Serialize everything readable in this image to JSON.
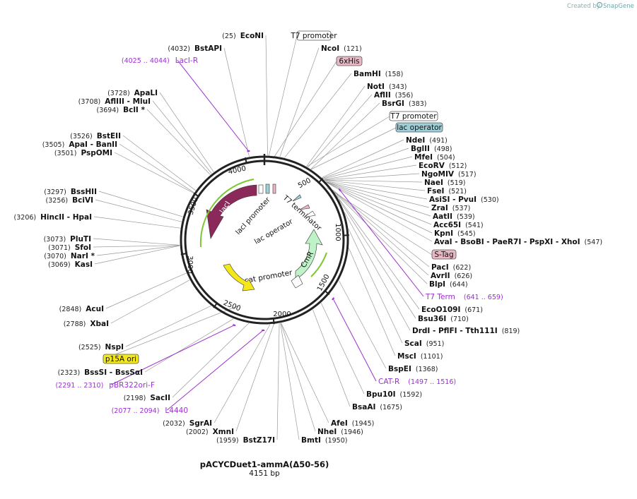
{
  "credit": "Created by",
  "brand": "SnapGene",
  "plasmid": {
    "name": "pACYCDuet1-ammA(Δ50-56)",
    "size_label": "4151 bp",
    "length": 4151
  },
  "ticks": [
    "500",
    "1000",
    "1500",
    "2000",
    "2500",
    "3000",
    "3500",
    "4000"
  ],
  "sites": [
    {
      "name": "EcoNI",
      "pos": "(25)"
    },
    {
      "name": "NcoI",
      "pos": "(121)"
    },
    {
      "name": "BamHI",
      "pos": "(158)"
    },
    {
      "name": "NotI",
      "pos": "(343)"
    },
    {
      "name": "AflII",
      "pos": "(356)"
    },
    {
      "name": "BsrGI",
      "pos": "(383)"
    },
    {
      "name": "NdeI",
      "pos": "(491)"
    },
    {
      "name": "BglII",
      "pos": "(498)"
    },
    {
      "name": "MfeI",
      "pos": "(504)"
    },
    {
      "name": "EcoRV",
      "pos": "(512)"
    },
    {
      "name": "NgoMIV",
      "pos": "(517)"
    },
    {
      "name": "NaeI",
      "pos": "(519)"
    },
    {
      "name": "FseI",
      "pos": "(521)"
    },
    {
      "name": "AsiSI  -  PvuI",
      "pos": "(530)"
    },
    {
      "name": "ZraI",
      "pos": "(537)"
    },
    {
      "name": "AatII",
      "pos": "(539)"
    },
    {
      "name": "Acc65I",
      "pos": "(541)"
    },
    {
      "name": "KpnI",
      "pos": "(545)"
    },
    {
      "name": "AvaI  -  BsoBI  -  PaeR7I  -  PspXI  -  XhoI",
      "pos": "(547)"
    },
    {
      "name": "PacI",
      "pos": "(622)"
    },
    {
      "name": "AvrII",
      "pos": "(626)"
    },
    {
      "name": "BlpI",
      "pos": "(644)"
    },
    {
      "name": "EcoO109I",
      "pos": "(671)"
    },
    {
      "name": "Bsu36I",
      "pos": "(710)"
    },
    {
      "name": "DrdI  -  PflFI  -  Tth111I",
      "pos": "(819)"
    },
    {
      "name": "ScaI",
      "pos": "(951)"
    },
    {
      "name": "MscI",
      "pos": "(1101)"
    },
    {
      "name": "BspEI",
      "pos": "(1368)"
    },
    {
      "name": "Bpu10I",
      "pos": "(1592)"
    },
    {
      "name": "BsaAI",
      "pos": "(1675)"
    },
    {
      "name": "AfeI",
      "pos": "(1945)"
    },
    {
      "name": "NheI",
      "pos": "(1946)"
    },
    {
      "name": "BmtI",
      "pos": "(1950)"
    },
    {
      "name": "BstZ17I",
      "pos": "(1959)"
    },
    {
      "name": "XmnI",
      "pos": "(2002)"
    },
    {
      "name": "SgrAI",
      "pos": "(2032)"
    },
    {
      "name": "SacII",
      "pos": "(2198)"
    },
    {
      "name": "BssSI  -  BssSαI",
      "pos": "(2323)"
    },
    {
      "name": "NspI",
      "pos": "(2525)"
    },
    {
      "name": "XbaI",
      "pos": "(2788)"
    },
    {
      "name": "AcuI",
      "pos": "(2848)"
    },
    {
      "name": "KasI",
      "pos": "(3069)"
    },
    {
      "name": "NarI *",
      "pos": "(3070)"
    },
    {
      "name": "SfoI",
      "pos": "(3071)"
    },
    {
      "name": "PluTI",
      "pos": "(3073)"
    },
    {
      "name": "HincII  -  HpaI",
      "pos": "(3206)"
    },
    {
      "name": "BciVI",
      "pos": "(3256)"
    },
    {
      "name": "BssHII",
      "pos": "(3297)"
    },
    {
      "name": "PspOMI",
      "pos": "(3501)"
    },
    {
      "name": "ApaI  -  BanII",
      "pos": "(3505)"
    },
    {
      "name": "BstEII",
      "pos": "(3526)"
    },
    {
      "name": "BclI *",
      "pos": "(3694)"
    },
    {
      "name": "AflIII  -  MluI",
      "pos": "(3708)"
    },
    {
      "name": "ApaLI",
      "pos": "(3728)"
    },
    {
      "name": "BstAPI",
      "pos": "(4032)"
    }
  ],
  "primers": [
    {
      "name": "LacI-R",
      "range": "(4025 .. 4044)"
    },
    {
      "name": "T7 Term",
      "range": "(641 .. 659)"
    },
    {
      "name": "CAT-R",
      "range": "(1497 .. 1516)"
    },
    {
      "name": "pBR322ori-F",
      "range": "(2291 .. 2310)"
    },
    {
      "name": "L4440",
      "range": "(2077 .. 2094)"
    }
  ],
  "boxed_features": [
    {
      "name": "T7 promoter",
      "fill": "#ffffff"
    },
    {
      "name": "6xHis",
      "fill": "#e8b8c4"
    },
    {
      "name": "T7 promoter",
      "fill": "#ffffff"
    },
    {
      "name": "lac operator",
      "fill": "#9ecfd8"
    },
    {
      "name": "S-Tag",
      "fill": "#e8b8c4"
    },
    {
      "name": "p15A ori",
      "fill": "#f4e81a"
    }
  ],
  "map_features": [
    {
      "name": "lacI",
      "color": "#8b2a5a"
    },
    {
      "name": "lacI promoter",
      "color": "#ffffff"
    },
    {
      "name": "lac operator",
      "color": "#9ecfd8"
    },
    {
      "name": "T7 terminator",
      "color": "#cccccc"
    },
    {
      "name": "CmR",
      "color": "#bff2c6"
    },
    {
      "name": "cat promoter",
      "color": "#ffffff"
    },
    {
      "name": "p15A ori",
      "color": "#f4e81a"
    }
  ]
}
